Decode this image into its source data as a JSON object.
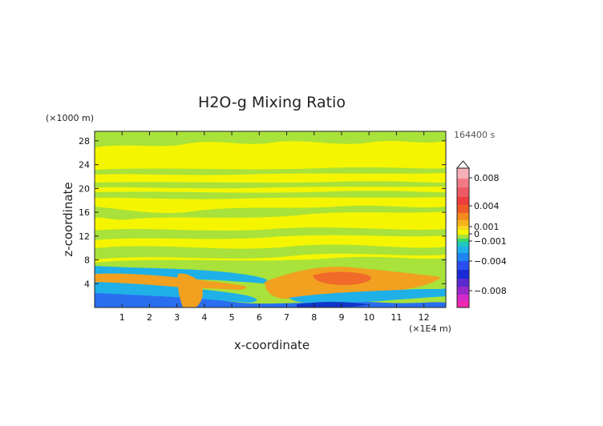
{
  "chart_data": {
    "type": "heatmap",
    "title": "H2O-g Mixing Ratio",
    "xlabel": "x-coordinate",
    "ylabel": "z-coordinate",
    "x_unit": "(×1E4 m)",
    "y_unit": "(×1000 m)",
    "time_label": "164400 s",
    "xlim": [
      0,
      12.8
    ],
    "ylim": [
      0,
      29.6
    ],
    "x_ticks": [
      1,
      2,
      3,
      4,
      5,
      6,
      7,
      8,
      9,
      10,
      11,
      12
    ],
    "y_ticks": [
      4,
      8,
      12,
      16,
      20,
      24,
      28
    ],
    "colorbar": {
      "min": -0.01,
      "max": 0.01,
      "tick_values": [
        0.008,
        0.004,
        0.001,
        0,
        -0.001,
        -0.004,
        -0.008
      ],
      "tick_labels": [
        "0.008",
        "0.004",
        "0.001",
        "0",
        "−0.001",
        "−0.004",
        "−0.008"
      ]
    },
    "z_pattern": {
      "description": "anomaly field; near zero (yellow/green) above 8 km; positive (orange) and negative (cyan/blue) bands below 7 km",
      "positive_regions": [
        {
          "x": [
            7.2,
            10.8
          ],
          "z": [
            2.5,
            6.0
          ],
          "peak": 0.003
        },
        {
          "x": [
            3.2,
            4.2
          ],
          "z": [
            1.0,
            4.5
          ],
          "peak": 0.003
        },
        {
          "x": [
            0.0,
            3.0
          ],
          "z": [
            4.0,
            6.0
          ],
          "peak": 0.0015
        }
      ],
      "negative_regions": [
        {
          "x": [
            0.0,
            12.8
          ],
          "z": [
            0.0,
            3.0
          ],
          "peak": -0.003
        },
        {
          "x": [
            0.0,
            6.0
          ],
          "z": [
            6.0,
            7.5
          ],
          "peak": -0.0015
        }
      ]
    },
    "grid": false
  }
}
